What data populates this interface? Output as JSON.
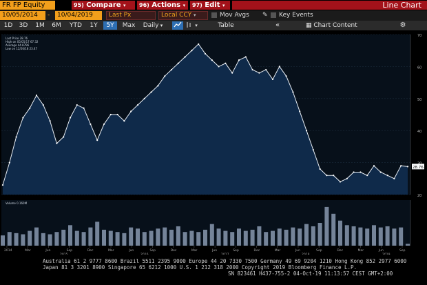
{
  "toolbar": {
    "ticker": "FR FP Equity",
    "compare": {
      "num": "95)",
      "label": "Compare"
    },
    "actions": {
      "num": "96)",
      "label": "Actions"
    },
    "edit": {
      "num": "97)",
      "label": "Edit"
    },
    "chart_type": "Line Chart"
  },
  "range_bar": {
    "start_date": "10/05/2014",
    "end_date": "10/04/2019",
    "field": "Last Px",
    "currency": "Local CCY",
    "mov_avgs": "Mov Avgs",
    "key_events": "Key Events"
  },
  "period_bar": {
    "periods": [
      "1D",
      "3D",
      "1M",
      "6M",
      "YTD",
      "1Y",
      "5Y",
      "Max"
    ],
    "selected": "5Y",
    "frequency": "Daily",
    "table_label": "Table",
    "chart_content_label": "Chart Content"
  },
  "legend": {
    "last_price": "Last Price 28.76",
    "high": "High on 05/05/17 67.32",
    "average": "Average 44.8796",
    "low": "Low on 12/26/18 23.47",
    "volume": "Volume 0.160M"
  },
  "footer": {
    "line1": "Australia 61 2 9777 8600 Brazil 5511 2395 9000 Europe 44 20 7330 7500 Germany 49 69 9204 1210 Hong Kong 852 2977 6000",
    "line2": "Japan 81 3 3201 8900        Singapore 65 6212 1000        U.S. 1 212 318 2000            Copyright 2019 Bloomberg Finance L.P.",
    "line3": "SN 823461 H437-755-2 04-Oct-19 11:13:57 CEST GMT+2:00"
  },
  "chart_data": {
    "type": "area",
    "ylim": [
      20,
      70
    ],
    "yticks": [
      20,
      30,
      40,
      50,
      60,
      70
    ],
    "last_value_label": "28.76",
    "x_ticks": [
      "2014",
      "Mar",
      "Jun",
      "Sep",
      "Dec",
      "Mar",
      "Jun",
      "Sep",
      "Dec",
      "Mar",
      "Jun",
      "Sep",
      "Dec",
      "Mar",
      "Jun",
      "Sep",
      "Dec",
      "Mar",
      "Jun",
      "Sep"
    ],
    "year_labels": [
      "2015",
      "2016",
      "2017",
      "2018",
      "2019"
    ],
    "x": [
      "2014-10",
      "2014-11",
      "2014-12",
      "2015-01",
      "2015-02",
      "2015-03",
      "2015-04",
      "2015-05",
      "2015-06",
      "2015-07",
      "2015-08",
      "2015-09",
      "2015-10",
      "2015-11",
      "2015-12",
      "2016-01",
      "2016-02",
      "2016-03",
      "2016-04",
      "2016-05",
      "2016-06",
      "2016-07",
      "2016-08",
      "2016-09",
      "2016-10",
      "2016-11",
      "2016-12",
      "2017-01",
      "2017-02",
      "2017-03",
      "2017-04",
      "2017-05",
      "2017-06",
      "2017-07",
      "2017-08",
      "2017-09",
      "2017-10",
      "2017-11",
      "2017-12",
      "2018-01",
      "2018-02",
      "2018-03",
      "2018-04",
      "2018-05",
      "2018-06",
      "2018-07",
      "2018-08",
      "2018-09",
      "2018-10",
      "2018-11",
      "2018-12",
      "2019-01",
      "2019-02",
      "2019-03",
      "2019-04",
      "2019-05",
      "2019-06",
      "2019-07",
      "2019-08",
      "2019-09",
      "2019-10"
    ],
    "series": [
      {
        "values": [
          23,
          30,
          38,
          44,
          47,
          51,
          48,
          43,
          36,
          38,
          44,
          48,
          47,
          42,
          37,
          42,
          45,
          45,
          43,
          46,
          48,
          50,
          52,
          54,
          57,
          59,
          61,
          63,
          65,
          67,
          64,
          62,
          60,
          61,
          58,
          62,
          63,
          59,
          58,
          59,
          56,
          60,
          57,
          52,
          46,
          40,
          34,
          28,
          26,
          26,
          24,
          25,
          27,
          27,
          26,
          29,
          27,
          26,
          25,
          29,
          28.76
        ]
      },
      {
        "name": "Volume",
        "values": [
          0.9,
          1.2,
          1.1,
          1.0,
          1.3,
          1.6,
          1.1,
          1.0,
          1.2,
          1.4,
          1.8,
          1.3,
          1.2,
          1.6,
          2.1,
          1.4,
          1.3,
          1.2,
          1.1,
          1.6,
          1.5,
          1.2,
          1.3,
          1.5,
          1.6,
          1.4,
          1.7,
          1.2,
          1.3,
          1.2,
          1.4,
          1.9,
          1.5,
          1.3,
          1.2,
          1.5,
          1.3,
          1.4,
          1.7,
          1.2,
          1.3,
          1.5,
          1.4,
          1.6,
          1.5,
          1.9,
          1.7,
          2.0,
          3.4,
          2.8,
          2.2,
          1.8,
          1.7,
          1.6,
          1.5,
          1.8,
          1.6,
          1.7,
          1.5,
          1.6,
          0.16
        ]
      }
    ]
  }
}
